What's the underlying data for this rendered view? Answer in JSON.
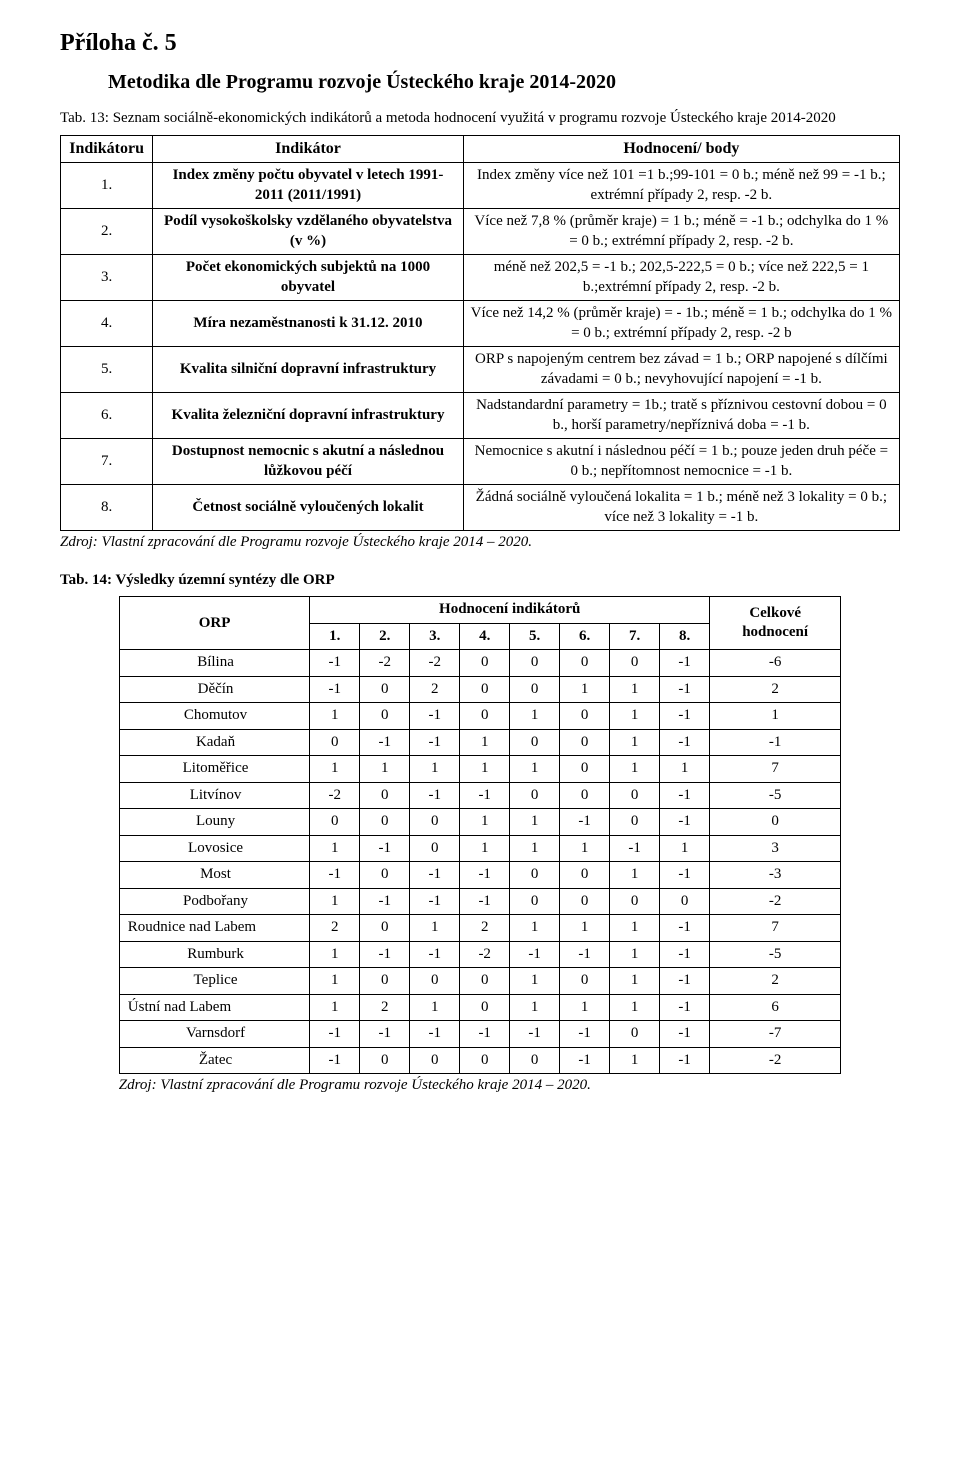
{
  "attachment_title": "Příloha č. 5",
  "subtitle": "Metodika dle Programu rozvoje Ústeckého kraje 2014-2020",
  "tab13_caption": "Tab. 13: Seznam sociálně-ekonomických indikátorů a metoda hodnocení využitá v programu rozvoje Ústeckého kraje 2014-2020",
  "table1": {
    "head": {
      "c1": "Indikátoru",
      "c2": "Indikátor",
      "c3": "Hodnocení/ body"
    },
    "rows": [
      {
        "num": "1.",
        "ind": "Index změny počtu obyvatel v letech 1991-2011 (2011/1991)",
        "score": "Index změny více než 101 =1 b.;99-101 = 0 b.; méně než 99 = -1 b.; extrémní případy 2, resp. -2 b."
      },
      {
        "num": "2.",
        "ind": "Podíl vysokoškolsky vzdělaného obyvatelstva (v %)",
        "score": "Více než 7,8 % (průměr kraje) = 1 b.; méně = -1 b.; odchylka do 1 % = 0 b.; extrémní případy 2, resp. -2 b."
      },
      {
        "num": "3.",
        "ind": "Počet ekonomických subjektů na 1000 obyvatel",
        "score": "méně než 202,5 = -1 b.; 202,5-222,5 = 0 b.; více než 222,5 = 1 b.;extrémní případy 2, resp. -2 b."
      },
      {
        "num": "4.",
        "ind": "Míra nezaměstnanosti k 31.12. 2010",
        "score": "Více než 14,2 % (průměr kraje) = - 1b.; méně = 1 b.; odchylka do 1 % = 0 b.; extrémní případy 2, resp. -2 b"
      },
      {
        "num": "5.",
        "ind": "Kvalita silniční dopravní infrastruktury",
        "score": "ORP s napojeným centrem bez závad = 1 b.; ORP napojené s dílčími závadami = 0 b.; nevyhovující napojení = -1 b."
      },
      {
        "num": "6.",
        "ind": "Kvalita železniční dopravní infrastruktury",
        "score": "Nadstandardní parametry = 1b.; tratě s příznivou cestovní dobou = 0 b., horší parametry/nepříznivá doba = -1 b."
      },
      {
        "num": "7.",
        "ind": "Dostupnost nemocnic s akutní a následnou lůžkovou péčí",
        "score": "Nemocnice s akutní i následnou péčí = 1 b.; pouze jeden druh péče = 0 b.; nepřítomnost nemocnice = -1 b."
      },
      {
        "num": "8.",
        "ind": "Četnost sociálně vyloučených lokalit",
        "score": "Žádná sociálně vyloučená lokalita = 1 b.; méně než 3 lokality = 0 b.; více než 3 lokality = -1 b."
      }
    ]
  },
  "source_text": "Zdroj: Vlastní zpracování dle Programu rozvoje Ústeckého kraje 2014 – 2020.",
  "tab14_caption": "Tab. 14: Výsledky územní syntézy dle ORP",
  "table2": {
    "head": {
      "orp": "ORP",
      "indic": "Hodnocení indikátorů",
      "total": "Celkové hodnocení",
      "cols": [
        "1.",
        "2.",
        "3.",
        "4.",
        "5.",
        "6.",
        "7.",
        "8."
      ]
    },
    "rows": [
      {
        "name": "Bílina",
        "v": [
          "-1",
          "-2",
          "-2",
          "0",
          "0",
          "0",
          "0",
          "-1"
        ],
        "total": "-6",
        "align": "center"
      },
      {
        "name": "Děčín",
        "v": [
          "-1",
          "0",
          "2",
          "0",
          "0",
          "1",
          "1",
          "-1"
        ],
        "total": "2",
        "align": "center"
      },
      {
        "name": "Chomutov",
        "v": [
          "1",
          "0",
          "-1",
          "0",
          "1",
          "0",
          "1",
          "-1"
        ],
        "total": "1",
        "align": "center"
      },
      {
        "name": "Kadaň",
        "v": [
          "0",
          "-1",
          "-1",
          "1",
          "0",
          "0",
          "1",
          "-1"
        ],
        "total": "-1",
        "align": "center"
      },
      {
        "name": "Litoměřice",
        "v": [
          "1",
          "1",
          "1",
          "1",
          "1",
          "0",
          "1",
          "1"
        ],
        "total": "7",
        "align": "center"
      },
      {
        "name": "Litvínov",
        "v": [
          "-2",
          "0",
          "-1",
          "-1",
          "0",
          "0",
          "0",
          "-1"
        ],
        "total": "-5",
        "align": "center"
      },
      {
        "name": "Louny",
        "v": [
          "0",
          "0",
          "0",
          "1",
          "1",
          "-1",
          "0",
          "-1"
        ],
        "total": "0",
        "align": "center"
      },
      {
        "name": "Lovosice",
        "v": [
          "1",
          "-1",
          "0",
          "1",
          "1",
          "1",
          "-1",
          "1"
        ],
        "total": "3",
        "align": "center"
      },
      {
        "name": "Most",
        "v": [
          "-1",
          "0",
          "-1",
          "-1",
          "0",
          "0",
          "1",
          "-1"
        ],
        "total": "-3",
        "align": "center"
      },
      {
        "name": "Podbořany",
        "v": [
          "1",
          "-1",
          "-1",
          "-1",
          "0",
          "0",
          "0",
          "0"
        ],
        "total": "-2",
        "align": "center"
      },
      {
        "name": "Roudnice nad Labem",
        "v": [
          "2",
          "0",
          "1",
          "2",
          "1",
          "1",
          "1",
          "-1"
        ],
        "total": "7",
        "align": "left"
      },
      {
        "name": "Rumburk",
        "v": [
          "1",
          "-1",
          "-1",
          "-2",
          "-1",
          "-1",
          "1",
          "-1"
        ],
        "total": "-5",
        "align": "center"
      },
      {
        "name": "Teplice",
        "v": [
          "1",
          "0",
          "0",
          "0",
          "1",
          "0",
          "1",
          "-1"
        ],
        "total": "2",
        "align": "center"
      },
      {
        "name": "Ústní nad Labem",
        "v": [
          "1",
          "2",
          "1",
          "0",
          "1",
          "1",
          "1",
          "-1"
        ],
        "total": "6",
        "align": "left"
      },
      {
        "name": "Varnsdorf",
        "v": [
          "-1",
          "-1",
          "-1",
          "-1",
          "-1",
          "-1",
          "0",
          "-1"
        ],
        "total": "-7",
        "align": "center"
      },
      {
        "name": "Žatec",
        "v": [
          "-1",
          "0",
          "0",
          "0",
          "0",
          "-1",
          "1",
          "-1"
        ],
        "total": "-2",
        "align": "center"
      }
    ]
  },
  "colors": {
    "text": "#000000",
    "bg": "#ffffff",
    "border": "#000000"
  }
}
